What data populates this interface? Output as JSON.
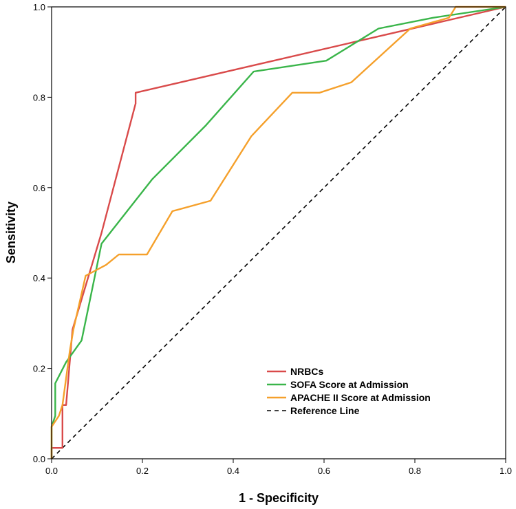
{
  "chart_data": {
    "type": "line",
    "title": "",
    "xlabel": "1 - Specificity",
    "ylabel": "Sensitivity",
    "xlim": [
      0,
      1
    ],
    "ylim": [
      0,
      1
    ],
    "x_ticks": [
      "0.0",
      "0.2",
      "0.4",
      "0.6",
      "0.8",
      "1.0"
    ],
    "y_ticks": [
      "0.0",
      "0.2",
      "0.4",
      "0.6",
      "0.8",
      "1.0"
    ],
    "legend_position": "bottom-right",
    "series": [
      {
        "name": "NRBCs",
        "color": "#d94a4a",
        "dash": "",
        "points": [
          [
            0,
            0
          ],
          [
            0,
            0.024
          ],
          [
            0.024,
            0.024
          ],
          [
            0.024,
            0.119
          ],
          [
            0.032,
            0.119
          ],
          [
            0.046,
            0.286
          ],
          [
            0.11,
            0.5
          ],
          [
            0.185,
            0.786
          ],
          [
            0.185,
            0.81
          ],
          [
            1,
            1
          ]
        ]
      },
      {
        "name": "SOFA Score  at Admission",
        "color": "#3ab54a",
        "dash": "",
        "points": [
          [
            0,
            0
          ],
          [
            0,
            0.071
          ],
          [
            0.008,
            0.095
          ],
          [
            0.008,
            0.167
          ],
          [
            0.032,
            0.214
          ],
          [
            0.066,
            0.262
          ],
          [
            0.11,
            0.476
          ],
          [
            0.222,
            0.619
          ],
          [
            0.34,
            0.738
          ],
          [
            0.445,
            0.857
          ],
          [
            0.605,
            0.881
          ],
          [
            0.72,
            0.952
          ],
          [
            0.84,
            0.976
          ],
          [
            1,
            1
          ]
        ]
      },
      {
        "name": "APACHE II Score at Admission",
        "color": "#f5a02b",
        "dash": "",
        "points": [
          [
            0,
            0
          ],
          [
            0,
            0.071
          ],
          [
            0.016,
            0.095
          ],
          [
            0.024,
            0.119
          ],
          [
            0.04,
            0.238
          ],
          [
            0.048,
            0.286
          ],
          [
            0.075,
            0.405
          ],
          [
            0.12,
            0.429
          ],
          [
            0.148,
            0.452
          ],
          [
            0.21,
            0.452
          ],
          [
            0.266,
            0.548
          ],
          [
            0.35,
            0.571
          ],
          [
            0.44,
            0.714
          ],
          [
            0.53,
            0.81
          ],
          [
            0.59,
            0.81
          ],
          [
            0.66,
            0.833
          ],
          [
            0.79,
            0.952
          ],
          [
            0.875,
            0.976
          ],
          [
            0.89,
            1
          ],
          [
            1,
            1
          ]
        ]
      },
      {
        "name": "Reference Line",
        "color": "#000000",
        "dash": "6,5",
        "points": [
          [
            0,
            0
          ],
          [
            1,
            1
          ]
        ]
      }
    ]
  }
}
